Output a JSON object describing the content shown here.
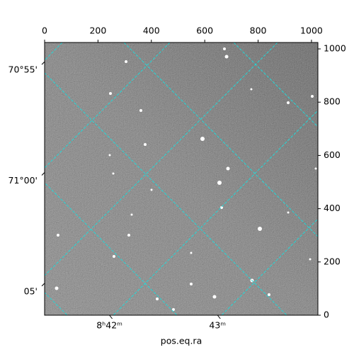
{
  "chart_data": {
    "type": "image",
    "xlabel": "pos.eq.ra",
    "xlim": [
      0,
      1024
    ],
    "ylim": [
      0,
      1024
    ],
    "xticks": [
      0,
      200,
      400,
      600,
      800,
      1000
    ],
    "yticks": [
      0,
      200,
      400,
      600,
      800,
      1000
    ],
    "ra_ticks": [
      {
        "value": 243,
        "label": "8ʰ42ᵐ"
      },
      {
        "value": 648,
        "label": "43ᵐ"
      }
    ],
    "dec_ticks": [
      {
        "value": 920,
        "label": "70°55'"
      },
      {
        "value": 504,
        "label": "71°00'"
      },
      {
        "value": 88,
        "label": "05'"
      }
    ]
  }
}
